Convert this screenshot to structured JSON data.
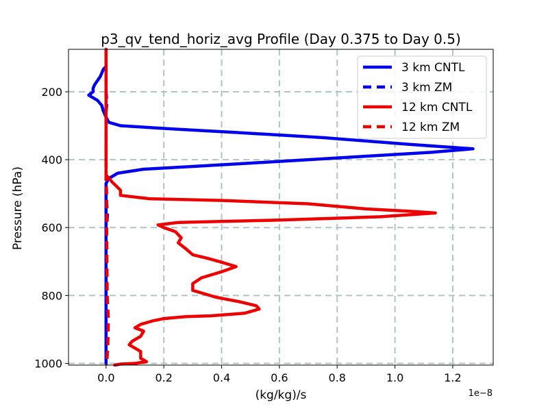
{
  "chart_data": {
    "type": "line",
    "title": "p3_qv_tend_horiz_avg Profile (Day 0.375 to Day 0.5)",
    "xlabel": "(kg/kg)/s",
    "ylabel": "Pressure (hPa)",
    "x_offset_text": "1e−8",
    "xlim": [
      -0.13,
      1.34
    ],
    "ylim": [
      1005,
      75
    ],
    "y_inverted": true,
    "grid": true,
    "x_ticks": [
      0.0,
      0.2,
      0.4,
      0.6,
      0.8,
      1.0,
      1.2
    ],
    "x_tick_labels": [
      "0.0",
      "0.2",
      "0.4",
      "0.6",
      "0.8",
      "1.0",
      "1.2"
    ],
    "y_ticks": [
      200,
      400,
      600,
      800,
      1000
    ],
    "y_tick_labels": [
      "200",
      "400",
      "600",
      "800",
      "1000"
    ],
    "legend_position": "top-right",
    "colors": {
      "blue": "#0000ee",
      "red": "#ee0000",
      "grid": "#b0c4c4"
    },
    "series": [
      {
        "name": "3 km CNTL",
        "color": "#0000ee",
        "dash": "solid",
        "points": [
          [
            0.0,
            75
          ],
          [
            0.0,
            100
          ],
          [
            0.0,
            125
          ],
          [
            -0.01,
            135
          ],
          [
            -0.02,
            155
          ],
          [
            -0.04,
            180
          ],
          [
            -0.045,
            190
          ],
          [
            -0.045,
            200
          ],
          [
            -0.06,
            210
          ],
          [
            -0.03,
            225
          ],
          [
            -0.015,
            240
          ],
          [
            -0.01,
            255
          ],
          [
            0.0,
            275
          ],
          [
            0.01,
            290
          ],
          [
            0.05,
            300
          ],
          [
            0.2,
            308
          ],
          [
            0.45,
            320
          ],
          [
            0.75,
            335
          ],
          [
            1.05,
            355
          ],
          [
            1.27,
            368
          ],
          [
            1.13,
            378
          ],
          [
            0.8,
            395
          ],
          [
            0.5,
            410
          ],
          [
            0.3,
            420
          ],
          [
            0.13,
            428
          ],
          [
            0.04,
            440
          ],
          [
            0.01,
            455
          ],
          [
            0.0,
            470
          ],
          [
            0.0,
            520
          ],
          [
            0.0,
            600
          ],
          [
            0.0,
            700
          ],
          [
            0.0,
            800
          ],
          [
            0.0,
            900
          ],
          [
            0.0,
            1000
          ]
        ]
      },
      {
        "name": "3 km ZM",
        "color": "#0000ee",
        "dash": "dashed",
        "points": [
          [
            0.0,
            75
          ],
          [
            0.0,
            200
          ],
          [
            0.003,
            230
          ],
          [
            0.0,
            260
          ],
          [
            0.0,
            400
          ],
          [
            0.0,
            500
          ],
          [
            0.005,
            560
          ],
          [
            0.002,
            600
          ],
          [
            0.0,
            700
          ],
          [
            0.004,
            800
          ],
          [
            0.002,
            900
          ],
          [
            0.0,
            1000
          ]
        ]
      },
      {
        "name": "12 km CNTL",
        "color": "#ee0000",
        "dash": "solid",
        "points": [
          [
            0.0,
            75
          ],
          [
            0.0,
            200
          ],
          [
            0.0,
            300
          ],
          [
            0.0,
            400
          ],
          [
            0.0,
            445
          ],
          [
            0.02,
            465
          ],
          [
            0.05,
            490
          ],
          [
            0.05,
            505
          ],
          [
            0.15,
            515
          ],
          [
            0.4,
            520
          ],
          [
            0.7,
            530
          ],
          [
            0.9,
            545
          ],
          [
            1.05,
            552
          ],
          [
            1.14,
            557
          ],
          [
            0.95,
            568
          ],
          [
            0.6,
            578
          ],
          [
            0.4,
            582
          ],
          [
            0.25,
            585
          ],
          [
            0.18,
            592
          ],
          [
            0.2,
            600
          ],
          [
            0.24,
            612
          ],
          [
            0.26,
            630
          ],
          [
            0.25,
            645
          ],
          [
            0.28,
            665
          ],
          [
            0.3,
            680
          ],
          [
            0.35,
            690
          ],
          [
            0.4,
            702
          ],
          [
            0.45,
            715
          ],
          [
            0.4,
            730
          ],
          [
            0.33,
            748
          ],
          [
            0.3,
            765
          ],
          [
            0.3,
            785
          ],
          [
            0.38,
            805
          ],
          [
            0.46,
            818
          ],
          [
            0.52,
            830
          ],
          [
            0.53,
            840
          ],
          [
            0.48,
            852
          ],
          [
            0.36,
            860
          ],
          [
            0.28,
            862
          ],
          [
            0.2,
            868
          ],
          [
            0.16,
            875
          ],
          [
            0.12,
            885
          ],
          [
            0.1,
            895
          ],
          [
            0.13,
            905
          ],
          [
            0.12,
            920
          ],
          [
            0.09,
            935
          ],
          [
            0.08,
            945
          ],
          [
            0.1,
            955
          ],
          [
            0.12,
            965
          ],
          [
            0.12,
            985
          ],
          [
            0.14,
            995
          ],
          [
            0.1,
            1000
          ],
          [
            0.05,
            1002
          ],
          [
            0.03,
            1005
          ]
        ]
      },
      {
        "name": "12 km ZM",
        "color": "#ee0000",
        "dash": "dashed",
        "points": [
          [
            0.0,
            75
          ],
          [
            0.0,
            300
          ],
          [
            0.0,
            450
          ],
          [
            0.002,
            500
          ],
          [
            0.002,
            600
          ],
          [
            0.003,
            700
          ],
          [
            0.004,
            800
          ],
          [
            0.008,
            870
          ],
          [
            0.006,
            950
          ],
          [
            0.002,
            1005
          ]
        ]
      }
    ]
  }
}
